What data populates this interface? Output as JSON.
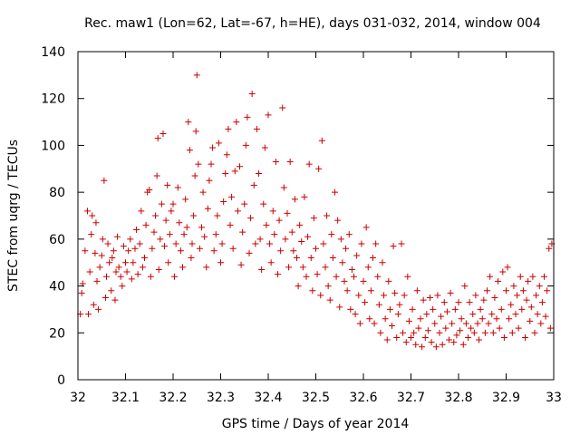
{
  "chart_data": {
    "type": "scatter",
    "title": "Rec. maw1 (Lon=62, Lat=-67, h=HE), days 031-032, 2014, window 004",
    "xlabel": "GPS time / Days of year 2014",
    "ylabel": "STEC from uqrg / TECUs",
    "xlim": [
      32,
      33
    ],
    "ylim": [
      0,
      140
    ],
    "x_ticks": [
      32,
      32.1,
      32.2,
      32.3,
      32.4,
      32.5,
      32.6,
      32.7,
      32.8,
      32.9,
      33
    ],
    "x_tick_labels": [
      "32",
      "32.1",
      "32.2",
      "32.3",
      "32.4",
      "32.5",
      "32.6",
      "32.7",
      "32.8",
      "32.9",
      "33"
    ],
    "y_ticks": [
      0,
      20,
      40,
      60,
      80,
      100,
      120,
      140
    ],
    "y_tick_labels": [
      "0",
      "20",
      "40",
      "60",
      "80",
      "100",
      "120",
      "140"
    ],
    "grid": false,
    "legend": "none",
    "marker": "+",
    "color": "#cc0000",
    "points": [
      [
        32.005,
        28
      ],
      [
        32.008,
        37
      ],
      [
        32.01,
        41
      ],
      [
        32.015,
        55
      ],
      [
        32.02,
        72
      ],
      [
        32.022,
        28
      ],
      [
        32.025,
        46
      ],
      [
        32.028,
        62
      ],
      [
        32.03,
        70
      ],
      [
        32.033,
        32
      ],
      [
        32.036,
        54
      ],
      [
        32.038,
        67
      ],
      [
        32.04,
        42
      ],
      [
        32.043,
        30
      ],
      [
        32.046,
        48
      ],
      [
        32.05,
        53
      ],
      [
        32.052,
        60
      ],
      [
        32.055,
        85
      ],
      [
        32.058,
        35
      ],
      [
        32.06,
        44
      ],
      [
        32.063,
        58
      ],
      [
        32.066,
        50
      ],
      [
        32.07,
        38
      ],
      [
        32.072,
        52
      ],
      [
        32.075,
        55
      ],
      [
        32.078,
        34
      ],
      [
        32.08,
        46
      ],
      [
        32.083,
        61
      ],
      [
        32.086,
        48
      ],
      [
        32.09,
        44
      ],
      [
        32.093,
        40
      ],
      [
        32.096,
        57
      ],
      [
        32.1,
        50
      ],
      [
        32.103,
        46
      ],
      [
        32.106,
        55
      ],
      [
        32.11,
        60
      ],
      [
        32.113,
        43
      ],
      [
        32.116,
        50
      ],
      [
        32.12,
        56
      ],
      [
        32.123,
        64
      ],
      [
        32.126,
        45
      ],
      [
        32.13,
        58
      ],
      [
        32.133,
        72
      ],
      [
        32.136,
        48
      ],
      [
        32.14,
        52
      ],
      [
        32.143,
        66
      ],
      [
        32.146,
        80
      ],
      [
        32.15,
        81
      ],
      [
        32.153,
        44
      ],
      [
        32.156,
        56
      ],
      [
        32.16,
        63
      ],
      [
        32.163,
        70
      ],
      [
        32.166,
        87
      ],
      [
        32.168,
        103
      ],
      [
        32.17,
        47
      ],
      [
        32.173,
        60
      ],
      [
        32.176,
        75
      ],
      [
        32.179,
        105
      ],
      [
        32.182,
        57
      ],
      [
        32.185,
        68
      ],
      [
        32.188,
        83
      ],
      [
        32.19,
        50
      ],
      [
        32.193,
        62
      ],
      [
        32.196,
        72
      ],
      [
        32.2,
        75
      ],
      [
        32.203,
        44
      ],
      [
        32.206,
        58
      ],
      [
        32.21,
        82
      ],
      [
        32.213,
        67
      ],
      [
        32.216,
        55
      ],
      [
        32.22,
        48
      ],
      [
        32.223,
        62
      ],
      [
        32.226,
        77
      ],
      [
        32.229,
        65
      ],
      [
        32.232,
        110
      ],
      [
        32.235,
        98
      ],
      [
        32.238,
        52
      ],
      [
        32.24,
        58
      ],
      [
        32.243,
        70
      ],
      [
        32.246,
        87
      ],
      [
        32.248,
        106
      ],
      [
        32.25,
        130
      ],
      [
        32.253,
        92
      ],
      [
        32.256,
        56
      ],
      [
        32.26,
        65
      ],
      [
        32.263,
        80
      ],
      [
        32.266,
        61
      ],
      [
        32.27,
        48
      ],
      [
        32.273,
        73
      ],
      [
        32.276,
        85
      ],
      [
        32.28,
        92
      ],
      [
        32.283,
        99
      ],
      [
        32.286,
        55
      ],
      [
        32.29,
        62
      ],
      [
        32.293,
        70
      ],
      [
        32.296,
        101
      ],
      [
        32.3,
        50
      ],
      [
        32.303,
        58
      ],
      [
        32.306,
        76
      ],
      [
        32.31,
        88
      ],
      [
        32.313,
        96
      ],
      [
        32.316,
        107
      ],
      [
        32.32,
        66
      ],
      [
        32.323,
        78
      ],
      [
        32.326,
        56
      ],
      [
        32.33,
        89
      ],
      [
        32.333,
        110
      ],
      [
        32.336,
        72
      ],
      [
        32.34,
        91
      ],
      [
        32.343,
        49
      ],
      [
        32.346,
        63
      ],
      [
        32.35,
        75
      ],
      [
        32.353,
        100
      ],
      [
        32.356,
        112
      ],
      [
        32.36,
        54
      ],
      [
        32.363,
        69
      ],
      [
        32.366,
        122
      ],
      [
        32.37,
        83
      ],
      [
        32.373,
        58
      ],
      [
        32.376,
        107
      ],
      [
        32.38,
        88
      ],
      [
        32.383,
        60
      ],
      [
        32.386,
        47
      ],
      [
        32.39,
        75
      ],
      [
        32.393,
        99
      ],
      [
        32.396,
        66
      ],
      [
        32.4,
        113
      ],
      [
        32.403,
        58
      ],
      [
        32.406,
        50
      ],
      [
        32.41,
        72
      ],
      [
        32.413,
        62
      ],
      [
        32.416,
        93
      ],
      [
        32.42,
        45
      ],
      [
        32.423,
        68
      ],
      [
        32.426,
        55
      ],
      [
        32.43,
        116
      ],
      [
        32.433,
        82
      ],
      [
        32.436,
        60
      ],
      [
        32.44,
        71
      ],
      [
        32.443,
        48
      ],
      [
        32.446,
        93
      ],
      [
        32.45,
        63
      ],
      [
        32.453,
        55
      ],
      [
        32.456,
        77
      ],
      [
        32.46,
        52
      ],
      [
        32.463,
        40
      ],
      [
        32.466,
        66
      ],
      [
        32.47,
        59
      ],
      [
        32.473,
        48
      ],
      [
        32.476,
        78
      ],
      [
        32.48,
        44
      ],
      [
        32.483,
        61
      ],
      [
        32.486,
        92
      ],
      [
        32.49,
        52
      ],
      [
        32.493,
        38
      ],
      [
        32.496,
        69
      ],
      [
        32.5,
        56
      ],
      [
        32.503,
        45
      ],
      [
        32.506,
        90
      ],
      [
        32.51,
        36
      ],
      [
        32.513,
        102
      ],
      [
        32.516,
        58
      ],
      [
        32.52,
        48
      ],
      [
        32.523,
        70
      ],
      [
        32.526,
        40
      ],
      [
        32.53,
        34
      ],
      [
        32.533,
        62
      ],
      [
        32.536,
        52
      ],
      [
        32.54,
        80
      ],
      [
        32.543,
        44
      ],
      [
        32.546,
        68
      ],
      [
        32.55,
        31
      ],
      [
        32.553,
        60
      ],
      [
        32.556,
        50
      ],
      [
        32.56,
        42
      ],
      [
        32.563,
        56
      ],
      [
        32.566,
        38
      ],
      [
        32.57,
        62
      ],
      [
        32.573,
        30
      ],
      [
        32.576,
        47
      ],
      [
        32.58,
        44
      ],
      [
        32.583,
        28
      ],
      [
        32.586,
        53
      ],
      [
        32.59,
        36
      ],
      [
        32.593,
        24
      ],
      [
        32.596,
        58
      ],
      [
        32.6,
        42
      ],
      [
        32.603,
        33
      ],
      [
        32.606,
        65
      ],
      [
        32.61,
        48
      ],
      [
        32.613,
        26
      ],
      [
        32.616,
        38
      ],
      [
        32.62,
        52
      ],
      [
        32.623,
        24
      ],
      [
        32.626,
        58
      ],
      [
        32.63,
        44
      ],
      [
        32.633,
        32
      ],
      [
        32.636,
        20
      ],
      [
        32.64,
        50
      ],
      [
        32.643,
        36
      ],
      [
        32.646,
        26
      ],
      [
        32.65,
        17
      ],
      [
        32.653,
        42
      ],
      [
        32.656,
        30
      ],
      [
        32.66,
        23
      ],
      [
        32.663,
        57
      ],
      [
        32.666,
        37
      ],
      [
        32.67,
        18
      ],
      [
        32.673,
        28
      ],
      [
        32.676,
        32
      ],
      [
        32.68,
        58
      ],
      [
        32.683,
        20
      ],
      [
        32.686,
        36
      ],
      [
        32.69,
        16
      ],
      [
        32.693,
        44
      ],
      [
        32.696,
        25
      ],
      [
        32.7,
        18
      ],
      [
        32.703,
        30
      ],
      [
        32.706,
        20
      ],
      [
        32.71,
        15
      ],
      [
        32.713,
        38
      ],
      [
        32.716,
        22
      ],
      [
        32.72,
        26
      ],
      [
        32.723,
        14
      ],
      [
        32.726,
        34
      ],
      [
        32.73,
        18
      ],
      [
        32.733,
        28
      ],
      [
        32.736,
        21
      ],
      [
        32.74,
        35
      ],
      [
        32.743,
        16
      ],
      [
        32.746,
        30
      ],
      [
        32.75,
        24
      ],
      [
        32.753,
        14
      ],
      [
        32.756,
        36
      ],
      [
        32.76,
        20
      ],
      [
        32.763,
        27
      ],
      [
        32.766,
        15
      ],
      [
        32.77,
        33
      ],
      [
        32.773,
        22
      ],
      [
        32.776,
        29
      ],
      [
        32.78,
        17
      ],
      [
        32.783,
        37
      ],
      [
        32.786,
        24
      ],
      [
        32.79,
        16
      ],
      [
        32.793,
        30
      ],
      [
        32.796,
        19
      ],
      [
        32.8,
        33
      ],
      [
        32.803,
        21
      ],
      [
        32.806,
        26
      ],
      [
        32.81,
        15
      ],
      [
        32.813,
        40
      ],
      [
        32.816,
        24
      ],
      [
        32.82,
        18
      ],
      [
        32.823,
        33
      ],
      [
        32.826,
        22
      ],
      [
        32.83,
        28
      ],
      [
        32.833,
        20
      ],
      [
        32.836,
        36
      ],
      [
        32.84,
        24
      ],
      [
        32.843,
        17
      ],
      [
        32.846,
        30
      ],
      [
        32.85,
        26
      ],
      [
        32.853,
        34
      ],
      [
        32.856,
        20
      ],
      [
        32.86,
        38
      ],
      [
        32.863,
        24
      ],
      [
        32.866,
        44
      ],
      [
        32.87,
        28
      ],
      [
        32.873,
        20
      ],
      [
        32.876,
        35
      ],
      [
        32.88,
        26
      ],
      [
        32.883,
        42
      ],
      [
        32.886,
        22
      ],
      [
        32.89,
        30
      ],
      [
        32.893,
        46
      ],
      [
        32.896,
        18
      ],
      [
        32.9,
        38
      ],
      [
        32.903,
        48
      ],
      [
        32.906,
        26
      ],
      [
        32.91,
        32
      ],
      [
        32.913,
        20
      ],
      [
        32.916,
        40
      ],
      [
        32.92,
        28
      ],
      [
        32.923,
        36
      ],
      [
        32.926,
        22
      ],
      [
        32.93,
        44
      ],
      [
        32.933,
        30
      ],
      [
        32.936,
        38
      ],
      [
        32.94,
        18
      ],
      [
        32.943,
        34
      ],
      [
        32.946,
        42
      ],
      [
        32.95,
        25
      ],
      [
        32.953,
        31
      ],
      [
        32.956,
        44
      ],
      [
        32.96,
        20
      ],
      [
        32.963,
        36
      ],
      [
        32.966,
        28
      ],
      [
        32.97,
        40
      ],
      [
        32.973,
        24
      ],
      [
        32.976,
        33
      ],
      [
        32.98,
        44
      ],
      [
        32.983,
        27
      ],
      [
        32.986,
        38
      ],
      [
        32.99,
        56
      ],
      [
        32.993,
        22
      ],
      [
        32.996,
        58
      ]
    ]
  }
}
